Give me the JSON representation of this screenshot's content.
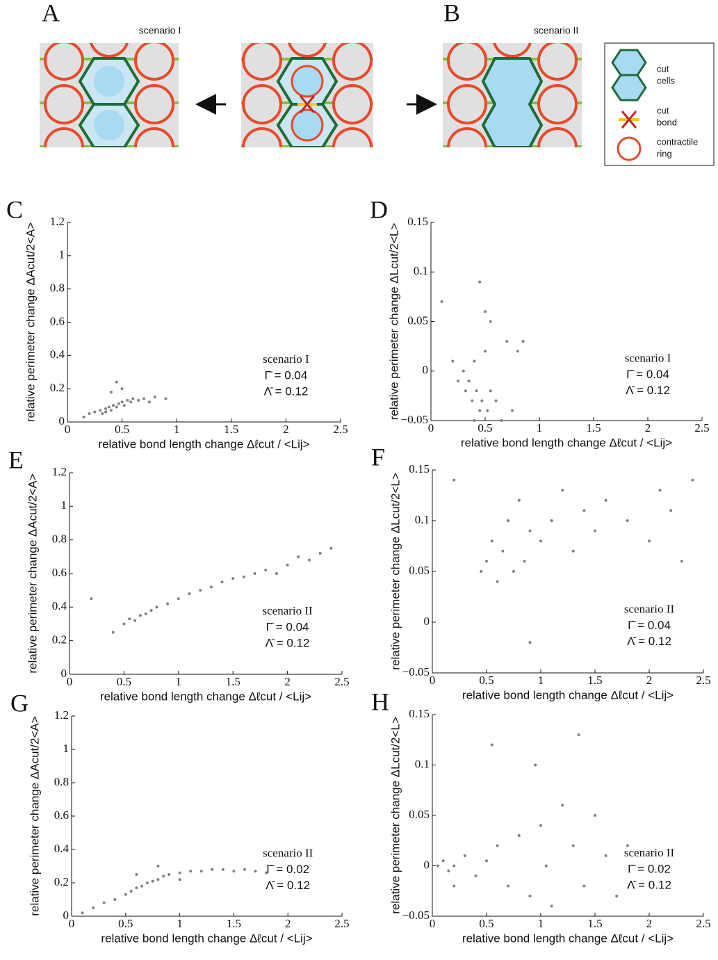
{
  "diagram": {
    "panel_labels": [
      "A",
      "B"
    ],
    "scenario_labels": [
      "scenario I",
      "scenario II"
    ],
    "legend": [
      [
        "cut",
        "cells"
      ],
      [
        "cut",
        "bond"
      ],
      [
        "contractile",
        "ring"
      ]
    ]
  },
  "chart_data": [
    {
      "type": "scatter",
      "panel": "C",
      "xlabel": "relative bond length change Δℓcut / <Lij>",
      "ylabel": "relative perimeter change  ΔAcut/2<A>",
      "annotations": [
        "scenario I",
        "Γ̄ = 0.04",
        "Λ̄ = 0.12"
      ],
      "color": "#808080",
      "xlim": [
        0,
        2.5
      ],
      "xticks": [
        0,
        0.5,
        1,
        1.5,
        2,
        2.5
      ],
      "ylim": [
        0,
        1.2
      ],
      "yticks": [
        0,
        0.2,
        0.4,
        0.6,
        0.8,
        1,
        1.2
      ],
      "x": [
        0.15,
        0.2,
        0.25,
        0.3,
        0.32,
        0.35,
        0.38,
        0.4,
        0.42,
        0.45,
        0.47,
        0.5,
        0.52,
        0.55,
        0.58,
        0.6,
        0.65,
        0.7,
        0.75,
        0.8,
        0.9,
        0.45,
        0.5,
        0.4,
        0.35
      ],
      "values": [
        0.03,
        0.05,
        0.06,
        0.07,
        0.05,
        0.08,
        0.09,
        0.07,
        0.1,
        0.09,
        0.11,
        0.12,
        0.1,
        0.13,
        0.12,
        0.14,
        0.13,
        0.14,
        0.12,
        0.15,
        0.14,
        0.24,
        0.2,
        0.18,
        0.06
      ]
    },
    {
      "type": "scatter",
      "panel": "D",
      "xlabel": "relative bond length change Δℓcut / <Lij>",
      "ylabel": "relative perimeter change  ΔLcut/2<L>",
      "annotations": [
        "scenario I",
        "Γ̄ = 0.04",
        "Λ̄ = 0.12"
      ],
      "color": "#808080",
      "xlim": [
        0,
        2.5
      ],
      "xticks": [
        0,
        0.5,
        1,
        1.5,
        2,
        2.5
      ],
      "ylim": [
        -0.05,
        0.15
      ],
      "yticks": [
        {
          "value": -0.05,
          "label": "−0.05"
        },
        0,
        0.05,
        0.1,
        0.15
      ],
      "x": [
        0.1,
        0.2,
        0.25,
        0.3,
        0.32,
        0.35,
        0.38,
        0.4,
        0.42,
        0.45,
        0.47,
        0.5,
        0.52,
        0.55,
        0.6,
        0.65,
        0.7,
        0.75,
        0.8,
        0.85,
        0.45,
        0.5,
        0.4,
        0.35,
        0.55
      ],
      "values": [
        0.07,
        0.01,
        -0.01,
        0,
        -0.02,
        -0.01,
        -0.03,
        0.01,
        -0.02,
        -0.04,
        -0.03,
        0.02,
        -0.04,
        0.05,
        -0.03,
        -0.05,
        0.03,
        -0.04,
        0.02,
        0.03,
        0.09,
        0.06,
        -0.05,
        -0.01,
        -0.02
      ]
    },
    {
      "type": "scatter",
      "panel": "E",
      "xlabel": "relative bond length change Δℓcut / <Lij>",
      "ylabel": "relative perimeter change  ΔAcut/2<A>",
      "annotations": [
        "scenario II",
        "Γ̄ = 0.04",
        "Λ̄ = 0.12"
      ],
      "color": "#808080",
      "xlim": [
        0,
        2.5
      ],
      "xticks": [
        0,
        0.5,
        1,
        1.5,
        2,
        2.5
      ],
      "ylim": [
        0,
        1.2
      ],
      "yticks": [
        0,
        0.2,
        0.4,
        0.6,
        0.8,
        1,
        1.2
      ],
      "x": [
        0.2,
        0.4,
        0.5,
        0.55,
        0.6,
        0.65,
        0.7,
        0.75,
        0.8,
        0.9,
        1,
        1.1,
        1.2,
        1.3,
        1.4,
        1.5,
        1.6,
        1.7,
        1.8,
        1.9,
        2,
        2.1,
        2.2,
        2.3,
        2.4
      ],
      "values": [
        0.45,
        0.25,
        0.3,
        0.33,
        0.32,
        0.35,
        0.36,
        0.38,
        0.4,
        0.42,
        0.45,
        0.48,
        0.5,
        0.52,
        0.55,
        0.57,
        0.58,
        0.6,
        0.62,
        0.6,
        0.65,
        0.7,
        0.68,
        0.72,
        0.75
      ]
    },
    {
      "type": "scatter",
      "panel": "F",
      "xlabel": "relative bond length change Δℓcut / <Lij>",
      "ylabel": "relative perimeter change  ΔLcut/2<L>",
      "annotations": [
        "scenario II",
        "Γ̄ = 0.04",
        "Λ̄ = 0.12"
      ],
      "color": "#808080",
      "xlim": [
        0,
        2.5
      ],
      "xticks": [
        0,
        0.5,
        1,
        1.5,
        2,
        2.5
      ],
      "ylim": [
        -0.05,
        0.15
      ],
      "yticks": [
        {
          "value": -0.05,
          "label": "−0.05"
        },
        0,
        0.05,
        0.1,
        0.15
      ],
      "x": [
        0.2,
        0.45,
        0.5,
        0.55,
        0.6,
        0.65,
        0.7,
        0.75,
        0.8,
        0.85,
        0.9,
        1,
        1.1,
        1.2,
        1.3,
        1.4,
        1.5,
        1.6,
        1.8,
        2,
        2.1,
        2.2,
        2.3,
        2.4,
        0.9
      ],
      "values": [
        0.14,
        0.05,
        0.06,
        0.08,
        0.04,
        0.07,
        0.1,
        0.05,
        0.12,
        0.06,
        0.09,
        0.08,
        0.1,
        0.13,
        0.07,
        0.11,
        0.09,
        0.12,
        0.1,
        0.08,
        0.13,
        0.11,
        0.06,
        0.14,
        -0.02
      ]
    },
    {
      "type": "scatter",
      "panel": "G",
      "xlabel": "relative bond length change Δℓcut / <Lij>",
      "ylabel": "relative perimeter change  ΔAcut/2<A>",
      "annotations": [
        "scenario II",
        "Γ̄ = 0.02",
        "Λ̄ = 0.12"
      ],
      "color": "#808080",
      "xlim": [
        0,
        2.5
      ],
      "xticks": [
        0,
        0.5,
        1,
        1.5,
        2,
        2.5
      ],
      "ylim": [
        0,
        1.2
      ],
      "yticks": [
        0,
        0.2,
        0.4,
        0.6,
        0.8,
        1,
        1.2
      ],
      "x": [
        0.1,
        0.2,
        0.3,
        0.4,
        0.5,
        0.55,
        0.6,
        0.65,
        0.7,
        0.75,
        0.8,
        0.85,
        0.9,
        1,
        1.1,
        1.2,
        1.3,
        1.4,
        1.5,
        1.6,
        1.7,
        1.8,
        0.6,
        0.8,
        1
      ],
      "values": [
        0.02,
        0.05,
        0.08,
        0.1,
        0.13,
        0.15,
        0.17,
        0.18,
        0.2,
        0.21,
        0.22,
        0.24,
        0.25,
        0.26,
        0.27,
        0.27,
        0.28,
        0.28,
        0.27,
        0.28,
        0.27,
        0.26,
        0.25,
        0.3,
        0.22
      ]
    },
    {
      "type": "scatter",
      "panel": "H",
      "xlabel": "relative bond length change Δℓcut / <Lij>",
      "ylabel": "relative perimeter change  ΔLcut/2<L>",
      "annotations": [
        "scenario II",
        "Γ̄ = 0.02",
        "Λ̄ = 0.12"
      ],
      "color": "#808080",
      "xlim": [
        0,
        2.5
      ],
      "xticks": [
        0,
        0.5,
        1,
        1.5,
        2,
        2.5
      ],
      "ylim": [
        -0.05,
        0.15
      ],
      "yticks": [
        {
          "value": -0.05,
          "label": "−0.05"
        },
        0,
        0.05,
        0.1,
        0.15
      ],
      "x": [
        0.05,
        0.1,
        0.15,
        0.2,
        0.3,
        0.4,
        0.5,
        0.6,
        0.7,
        0.8,
        0.9,
        1,
        1.05,
        1.1,
        1.2,
        1.3,
        1.4,
        1.5,
        1.6,
        1.7,
        1.8,
        0.55,
        0.95,
        1.35,
        0.2
      ],
      "values": [
        0,
        0.005,
        -0.005,
        0,
        0.01,
        -0.01,
        0.005,
        0.02,
        -0.02,
        0.03,
        -0.03,
        0.04,
        0,
        -0.04,
        0.06,
        0.02,
        -0.02,
        0.05,
        0.01,
        -0.03,
        0.02,
        0.12,
        0.1,
        0.13,
        -0.02
      ]
    }
  ]
}
